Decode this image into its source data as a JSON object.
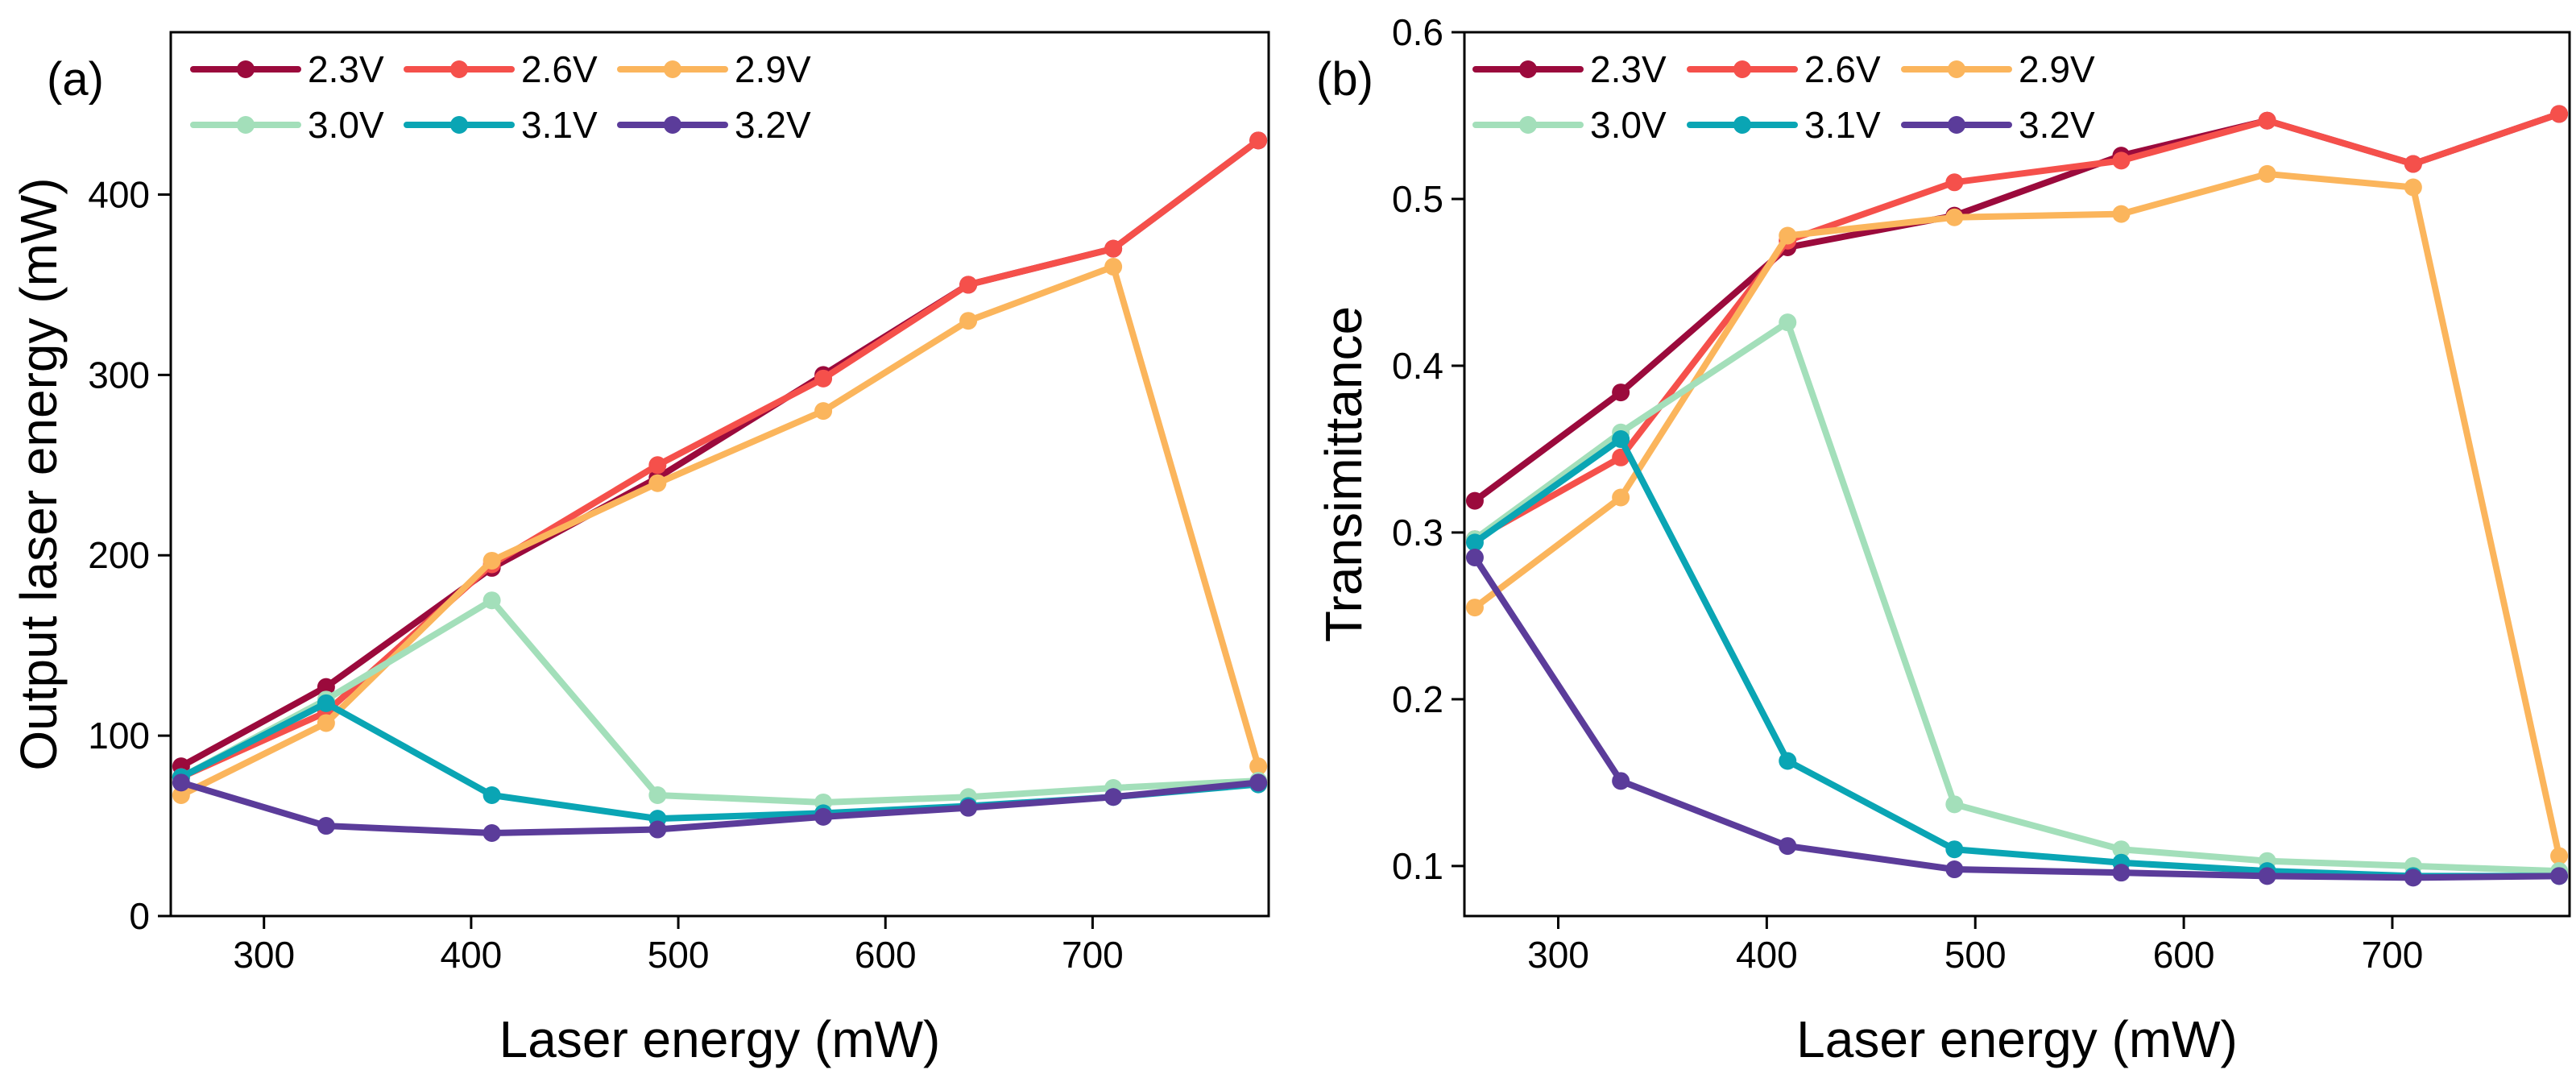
{
  "colors": {
    "2.3V": "#9b0a3c",
    "2.6V": "#f5504b",
    "2.9V": "#fbb55c",
    "3.0V": "#a3dfba",
    "3.1V": "#0aa5b4",
    "3.2V": "#5b3c9a",
    "axis": "#000000"
  },
  "chart_data": [
    {
      "type": "line",
      "panel_label": "(a)",
      "title": "",
      "xlabel": "Laser energy (mW)",
      "ylabel": "Output laser energy (mW)",
      "xlim": [
        255,
        785
      ],
      "ylim": [
        0,
        490
      ],
      "xticks": [
        300,
        400,
        500,
        600,
        700
      ],
      "yticks": [
        0,
        100,
        200,
        300,
        400
      ],
      "x": [
        260,
        330,
        410,
        490,
        570,
        640,
        710,
        780
      ],
      "legend_position": "top-left",
      "series": [
        {
          "name": "2.3V",
          "values": [
            83,
            127,
            193,
            243,
            300,
            350,
            370,
            430
          ]
        },
        {
          "name": "2.6V",
          "values": [
            77,
            113,
            195,
            250,
            298,
            350,
            370,
            430
          ]
        },
        {
          "name": "2.9V",
          "values": [
            67,
            107,
            197,
            240,
            280,
            330,
            360,
            83
          ]
        },
        {
          "name": "3.0V",
          "values": [
            77,
            120,
            175,
            67,
            63,
            66,
            71,
            75
          ]
        },
        {
          "name": "3.1V",
          "values": [
            77,
            118,
            67,
            54,
            57,
            61,
            66,
            73
          ]
        },
        {
          "name": "3.2V",
          "values": [
            74,
            50,
            46,
            48,
            55,
            60,
            66,
            74
          ]
        }
      ]
    },
    {
      "type": "line",
      "panel_label": "(b)",
      "title": "",
      "xlabel": "Laser energy (mW)",
      "ylabel": "Transimittance",
      "xlim": [
        255,
        785
      ],
      "ylim": [
        0.07,
        0.6
      ],
      "xticks": [
        300,
        400,
        500,
        600,
        700
      ],
      "yticks": [
        0.1,
        0.2,
        0.3,
        0.4,
        0.5,
        0.6
      ],
      "x": [
        260,
        330,
        410,
        490,
        570,
        640,
        710,
        780
      ],
      "legend_position": "top-left",
      "series": [
        {
          "name": "2.3V",
          "values": [
            0.319,
            0.384,
            0.471,
            0.49,
            0.526,
            0.547,
            0.521,
            0.551
          ]
        },
        {
          "name": "2.6V",
          "values": [
            0.296,
            0.345,
            0.475,
            0.51,
            0.523,
            0.547,
            0.521,
            0.551
          ]
        },
        {
          "name": "2.9V",
          "values": [
            0.255,
            0.321,
            0.478,
            0.489,
            0.491,
            0.515,
            0.507,
            0.106
          ]
        },
        {
          "name": "3.0V",
          "values": [
            0.296,
            0.36,
            0.426,
            0.137,
            0.11,
            0.103,
            0.1,
            0.097
          ]
        },
        {
          "name": "3.1V",
          "values": [
            0.294,
            0.356,
            0.163,
            0.11,
            0.102,
            0.097,
            0.094,
            0.094
          ]
        },
        {
          "name": "3.2V",
          "values": [
            0.285,
            0.151,
            0.112,
            0.098,
            0.096,
            0.094,
            0.093,
            0.094
          ]
        }
      ]
    }
  ]
}
